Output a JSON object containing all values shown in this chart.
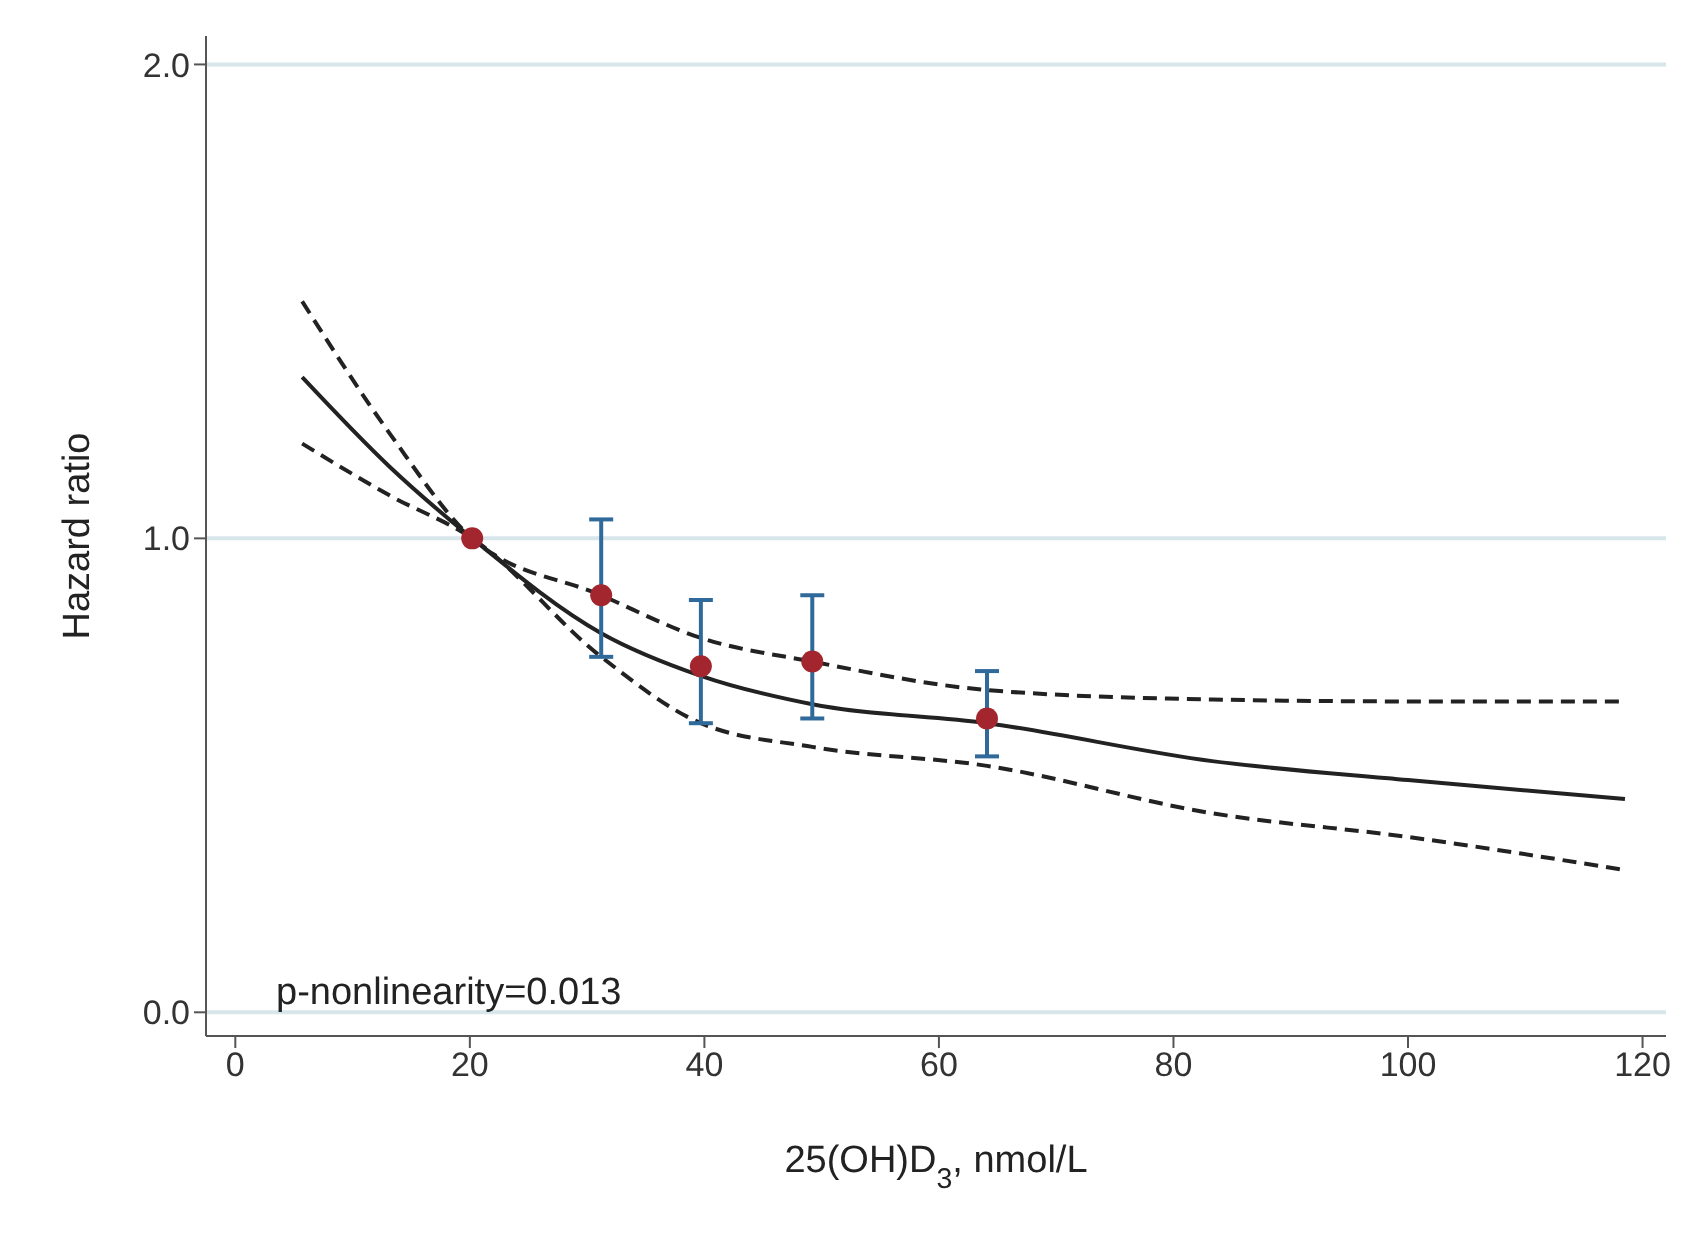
{
  "chart_data": {
    "type": "line",
    "xlabel": "25(OH)D$_{3}$, nmol/L",
    "ylabel": "Hazard ratio",
    "xlim": [
      -2.5,
      122
    ],
    "xticks": [
      0,
      20,
      40,
      60,
      80,
      100,
      120
    ],
    "ylim": [
      -0.05,
      2.06
    ],
    "yticks": [
      {
        "value": 0,
        "label": "0.0"
      },
      {
        "value": 1,
        "label": "1.0"
      },
      {
        "value": 2,
        "label": "2.0"
      }
    ],
    "grid": "y",
    "series": [
      {
        "line_style": "solid",
        "color": "#222222",
        "x": [
          5.7,
          13.2,
          20.2,
          31.2,
          39.7,
          49.2,
          64.1,
          83.3,
          100,
          118.5
        ],
        "values": [
          1.34,
          1.15,
          1.0,
          0.8,
          0.71,
          0.65,
          0.61,
          0.53,
          0.49,
          0.45
        ]
      },
      {
        "line_style": "dashed",
        "color": "#222222",
        "x": [
          5.7,
          13.2,
          20.2,
          31.2,
          39.7,
          49.2,
          64.1,
          83.3,
          100,
          118.5
        ],
        "values": [
          1.5,
          1.22,
          1.0,
          0.88,
          0.79,
          0.74,
          0.68,
          0.66,
          0.656,
          0.656
        ]
      },
      {
        "line_style": "dashed",
        "color": "#222222",
        "x": [
          5.7,
          13.2,
          20.2,
          31.2,
          39.7,
          49.2,
          64.1,
          83.3,
          100,
          118.5
        ],
        "values": [
          1.2,
          1.09,
          1.0,
          0.75,
          0.61,
          0.56,
          0.52,
          0.42,
          0.37,
          0.3
        ]
      },
      {
        "type": "scatter",
        "marker": "circle",
        "color": "#a3262e",
        "x": [
          20.2,
          31.2,
          39.7,
          49.2,
          64.1
        ],
        "values": [
          1.0,
          0.88,
          0.73,
          0.74,
          0.62
        ],
        "errors": [
          null,
          [
            0.75,
            1.04
          ],
          [
            0.61,
            0.87
          ],
          [
            0.62,
            0.88
          ],
          [
            0.54,
            0.72
          ]
        ]
      }
    ],
    "annotations": [
      "p-nonlinearity=0.013"
    ]
  }
}
